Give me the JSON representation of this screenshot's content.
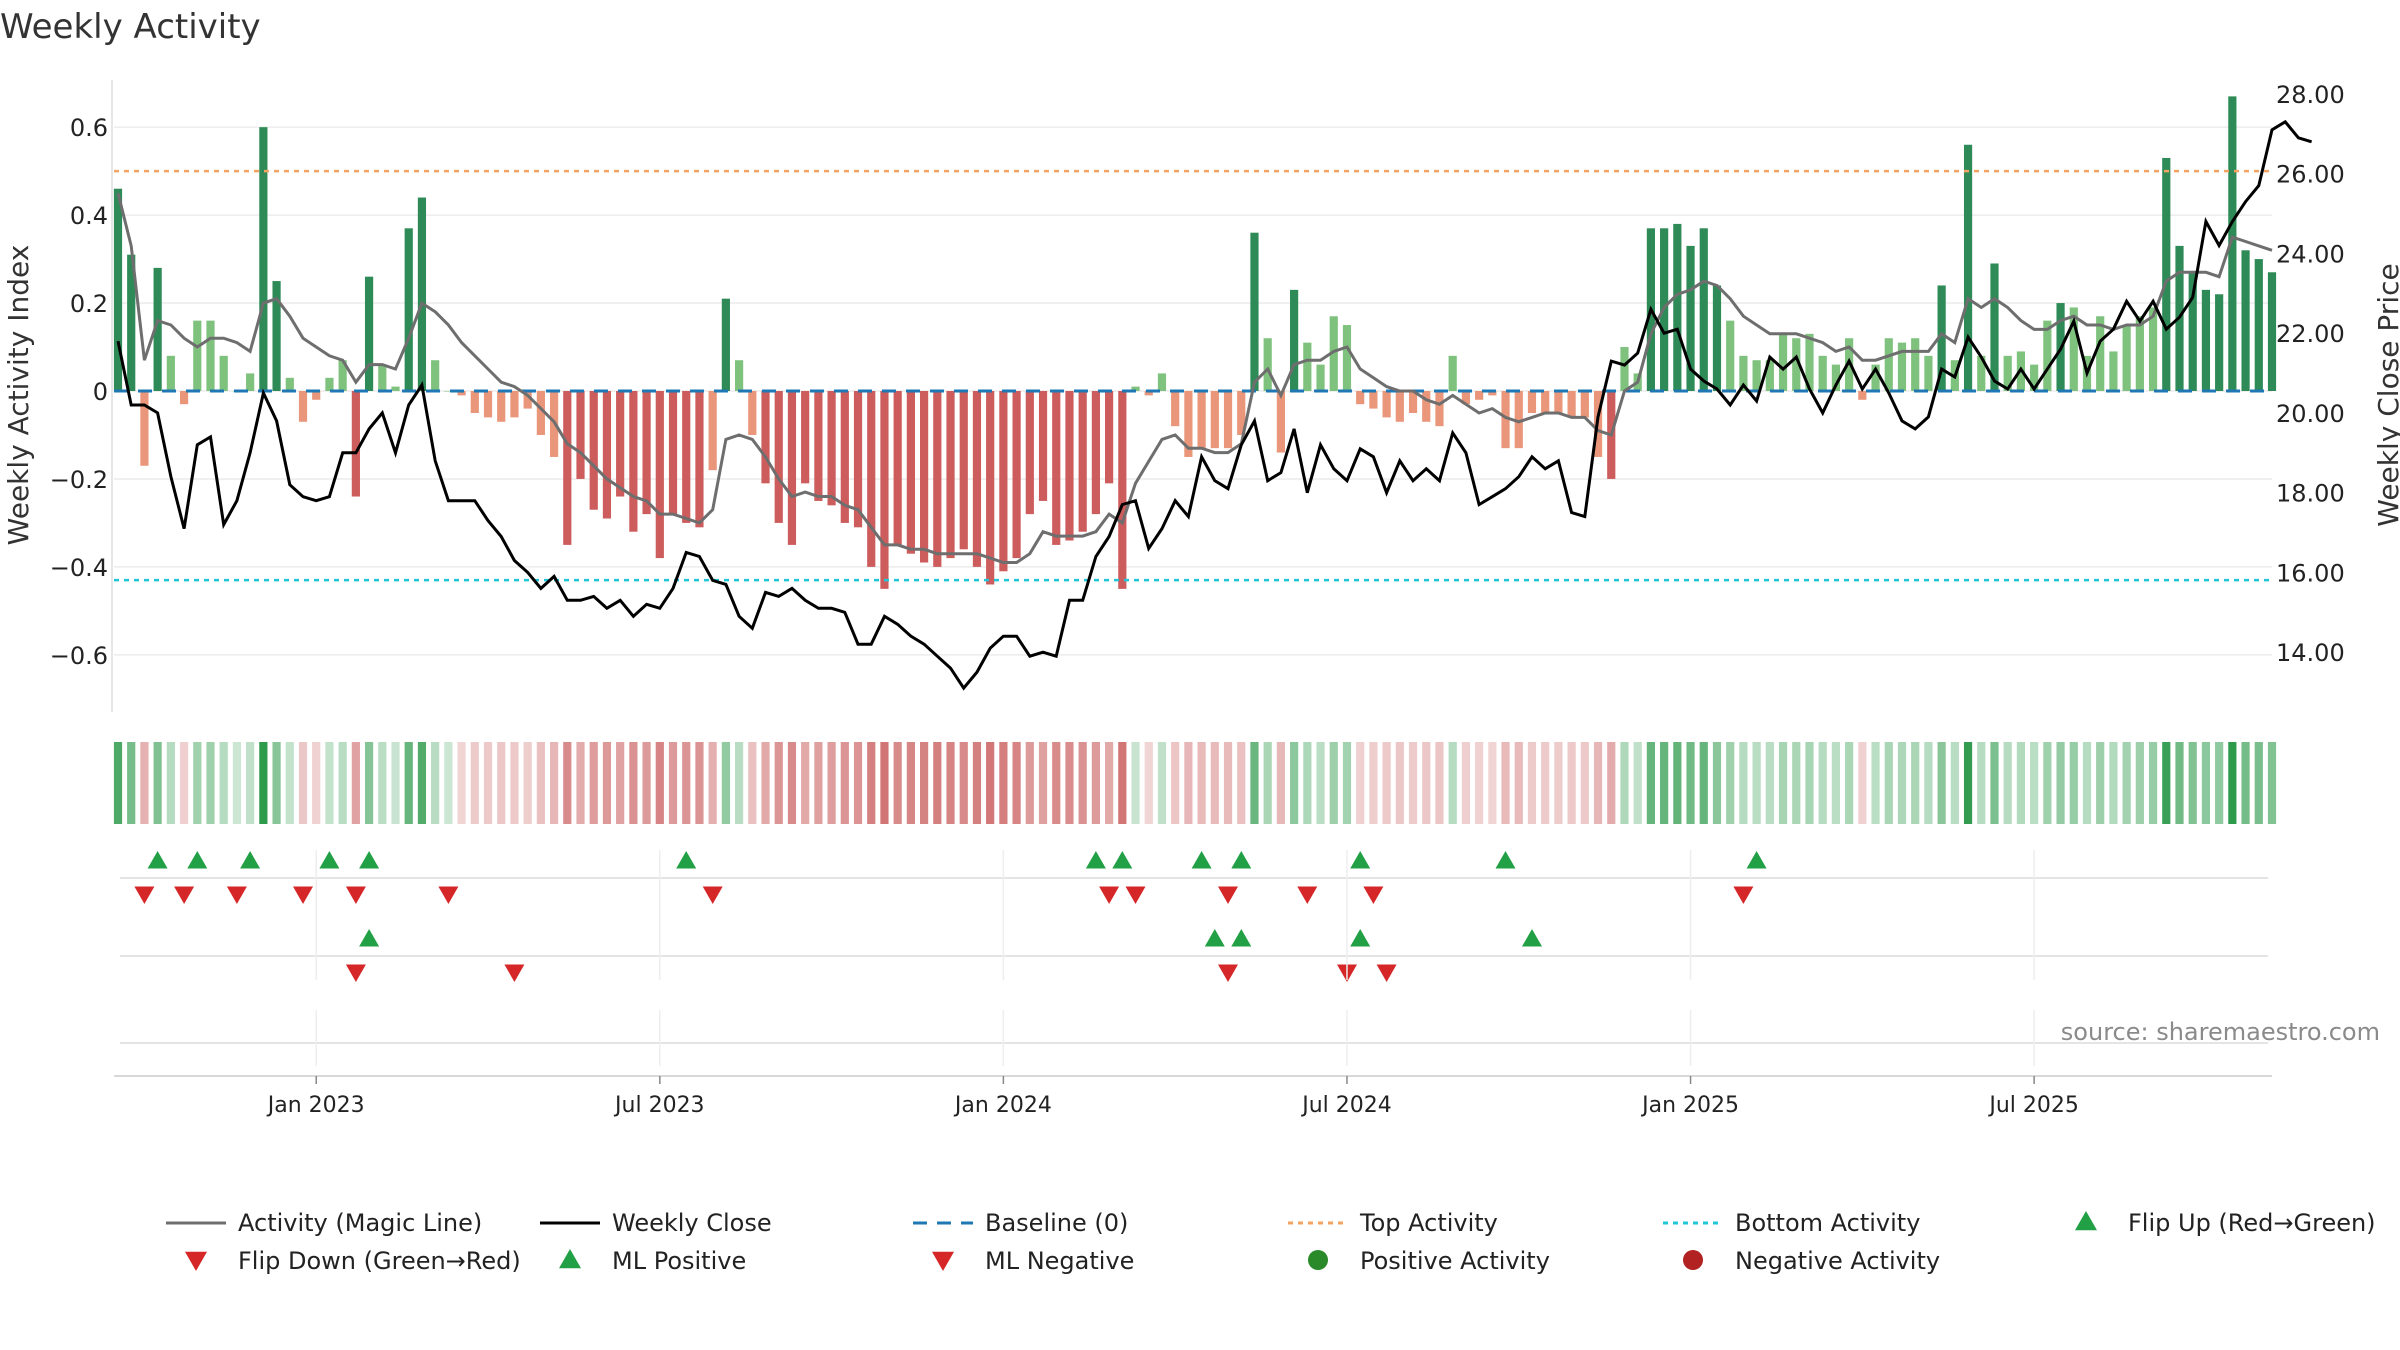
{
  "chart_data": {
    "type": "bar",
    "title": "Weekly Activity",
    "ylabel": "Weekly Activity Index",
    "y2label": "Weekly Close Price",
    "source": "source: sharemaestro.com",
    "ylim": [
      -0.73,
      0.73
    ],
    "y2lim": [
      12.5,
      28.6
    ],
    "yticks": [
      "0.6",
      "0.4",
      "0.2",
      "0",
      "−0.2",
      "−0.4",
      "−0.6"
    ],
    "ytick_values": [
      0.6,
      0.4,
      0.2,
      0,
      -0.2,
      -0.4,
      -0.6
    ],
    "y2ticks": [
      "28.00",
      "26.00",
      "24.00",
      "22.00",
      "20.00",
      "18.00",
      "16.00",
      "14.00"
    ],
    "y2tick_values": [
      28,
      26,
      24,
      22,
      20,
      18,
      16,
      14
    ],
    "xticks": [
      {
        "label": "Jan 2023",
        "week": 15
      },
      {
        "label": "Jul 2023",
        "week": 41
      },
      {
        "label": "Jan 2024",
        "week": 67
      },
      {
        "label": "Jul 2024",
        "week": 93
      },
      {
        "label": "Jan 2025",
        "week": 119
      },
      {
        "label": "Jul 2025",
        "week": 145
      }
    ],
    "top_activity": 0.5,
    "bottom_activity": -0.43,
    "activity_values": [
      0.46,
      0.31,
      -0.17,
      0.28,
      0.08,
      -0.03,
      0.16,
      0.16,
      0.08,
      0.0,
      0.04,
      0.6,
      0.25,
      0.03,
      -0.07,
      -0.02,
      0.03,
      0.07,
      -0.24,
      0.26,
      0.06,
      0.01,
      0.37,
      0.44,
      0.07,
      0.0,
      -0.01,
      -0.05,
      -0.06,
      -0.07,
      -0.06,
      -0.04,
      -0.1,
      -0.15,
      -0.35,
      -0.2,
      -0.27,
      -0.29,
      -0.24,
      -0.32,
      -0.28,
      -0.38,
      -0.28,
      -0.3,
      -0.31,
      -0.18,
      0.21,
      0.07,
      -0.1,
      -0.21,
      -0.3,
      -0.35,
      -0.21,
      -0.25,
      -0.26,
      -0.3,
      -0.31,
      -0.4,
      -0.45,
      -0.35,
      -0.37,
      -0.39,
      -0.4,
      -0.38,
      -0.36,
      -0.4,
      -0.44,
      -0.41,
      -0.38,
      -0.28,
      -0.25,
      -0.35,
      -0.34,
      -0.32,
      -0.28,
      -0.21,
      -0.45,
      0.01,
      -0.01,
      0.04,
      -0.08,
      -0.15,
      -0.13,
      -0.13,
      -0.13,
      -0.1,
      0.36,
      0.12,
      -0.14,
      0.23,
      0.11,
      0.06,
      0.17,
      0.15,
      -0.03,
      -0.04,
      -0.06,
      -0.07,
      -0.05,
      -0.07,
      -0.08,
      0.08,
      -0.03,
      -0.02,
      -0.01,
      -0.13,
      -0.13,
      -0.05,
      -0.05,
      -0.05,
      -0.06,
      -0.06,
      -0.15,
      -0.2,
      0.1,
      0.04,
      0.37,
      0.37,
      0.38,
      0.33,
      0.37,
      0.24,
      0.16,
      0.08,
      0.07,
      0.07,
      0.13,
      0.12,
      0.13,
      0.08,
      0.06,
      0.12,
      -0.02,
      0.06,
      0.12,
      0.11,
      0.12,
      0.08,
      0.24,
      0.07,
      0.56,
      0.08,
      0.29,
      0.08,
      0.09,
      0.06,
      0.16,
      0.2,
      0.19,
      0.08,
      0.17,
      0.09,
      0.15,
      0.17,
      0.19,
      0.53,
      0.33,
      0.27,
      0.23,
      0.22,
      0.67,
      0.32,
      0.3,
      0.27
    ],
    "weekly_close": [
      21.8,
      20.2,
      20.2,
      20.0,
      18.4,
      17.1,
      19.2,
      19.4,
      17.2,
      17.8,
      19.0,
      20.5,
      19.8,
      18.2,
      17.9,
      17.8,
      17.9,
      19.0,
      19.0,
      19.6,
      20.0,
      19.0,
      20.2,
      20.7,
      18.8,
      17.8,
      17.8,
      17.8,
      17.3,
      16.9,
      16.3,
      16.0,
      15.6,
      15.9,
      15.3,
      15.3,
      15.4,
      15.1,
      15.3,
      14.9,
      15.2,
      15.1,
      15.6,
      16.5,
      16.4,
      15.8,
      15.7,
      14.9,
      14.6,
      15.5,
      15.4,
      15.6,
      15.3,
      15.1,
      15.1,
      15.0,
      14.2,
      14.2,
      14.9,
      14.7,
      14.4,
      14.2,
      13.9,
      13.6,
      13.1,
      13.5,
      14.1,
      14.4,
      14.4,
      13.9,
      14.0,
      13.9,
      15.3,
      15.3,
      16.4,
      16.9,
      17.7,
      17.8,
      16.6,
      17.1,
      17.8,
      17.4,
      18.9,
      18.3,
      18.1,
      19.2,
      19.8,
      18.3,
      18.5,
      19.6,
      18.0,
      19.2,
      18.6,
      18.3,
      19.1,
      18.9,
      18.0,
      18.8,
      18.3,
      18.6,
      18.3,
      19.5,
      19.0,
      17.7,
      17.9,
      18.1,
      18.4,
      18.9,
      18.6,
      18.8,
      17.5,
      17.4,
      19.9,
      21.3,
      21.2,
      21.5,
      22.6,
      22.0,
      22.1,
      21.1,
      20.8,
      20.6,
      20.2,
      20.7,
      20.3,
      21.4,
      21.1,
      21.4,
      20.6,
      20.0,
      20.7,
      21.3,
      20.6,
      21.1,
      20.5,
      19.8,
      19.6,
      19.9,
      21.1,
      20.9,
      21.9,
      21.4,
      20.8,
      20.6,
      21.1,
      20.6,
      21.1,
      21.6,
      22.3,
      21.0,
      21.8,
      22.1,
      22.8,
      22.3,
      22.8,
      22.1,
      22.4,
      22.9,
      24.8,
      24.2,
      24.8,
      25.3,
      25.7,
      27.1,
      27.3,
      26.9,
      26.8
    ],
    "magic_line": [
      0.45,
      0.33,
      0.07,
      0.16,
      0.15,
      0.12,
      0.1,
      0.12,
      0.12,
      0.11,
      0.09,
      0.2,
      0.21,
      0.17,
      0.12,
      0.1,
      0.08,
      0.07,
      0.02,
      0.06,
      0.06,
      0.05,
      0.12,
      0.2,
      0.18,
      0.15,
      0.11,
      0.08,
      0.05,
      0.02,
      0.01,
      -0.01,
      -0.04,
      -0.07,
      -0.12,
      -0.14,
      -0.17,
      -0.2,
      -0.22,
      -0.24,
      -0.25,
      -0.28,
      -0.28,
      -0.29,
      -0.3,
      -0.27,
      -0.11,
      -0.1,
      -0.11,
      -0.15,
      -0.2,
      -0.24,
      -0.23,
      -0.24,
      -0.24,
      -0.26,
      -0.27,
      -0.31,
      -0.35,
      -0.35,
      -0.36,
      -0.36,
      -0.37,
      -0.37,
      -0.37,
      -0.37,
      -0.38,
      -0.39,
      -0.39,
      -0.37,
      -0.32,
      -0.33,
      -0.33,
      -0.33,
      -0.32,
      -0.28,
      -0.3,
      -0.21,
      -0.16,
      -0.11,
      -0.1,
      -0.13,
      -0.13,
      -0.14,
      -0.14,
      -0.12,
      0.02,
      0.05,
      -0.01,
      0.06,
      0.07,
      0.07,
      0.09,
      0.1,
      0.05,
      0.03,
      0.01,
      0.0,
      0.0,
      -0.02,
      -0.03,
      -0.01,
      -0.03,
      -0.05,
      -0.04,
      -0.06,
      -0.07,
      -0.06,
      -0.05,
      -0.05,
      -0.06,
      -0.06,
      -0.09,
      -0.1,
      0.0,
      0.02,
      0.13,
      0.19,
      0.22,
      0.23,
      0.25,
      0.24,
      0.21,
      0.17,
      0.15,
      0.13,
      0.13,
      0.13,
      0.12,
      0.11,
      0.09,
      0.1,
      0.07,
      0.07,
      0.08,
      0.09,
      0.09,
      0.09,
      0.13,
      0.11,
      0.21,
      0.19,
      0.21,
      0.19,
      0.16,
      0.14,
      0.14,
      0.16,
      0.17,
      0.15,
      0.15,
      0.14,
      0.15,
      0.15,
      0.17,
      0.25,
      0.27,
      0.27,
      0.27,
      0.26,
      0.35,
      0.34,
      0.33,
      0.32
    ],
    "flip_up": [
      3,
      6,
      10,
      16,
      19,
      43,
      74,
      76,
      82,
      85,
      94,
      105,
      124
    ],
    "flip_down": [
      2,
      5,
      9,
      14,
      18,
      25,
      45,
      75,
      77,
      84,
      90,
      95,
      123
    ],
    "ml_positive": [
      19,
      83,
      85,
      94,
      107
    ],
    "ml_negative": [
      18,
      30,
      84,
      93,
      96
    ],
    "legend": [
      "Activity (Magic Line)",
      "Weekly Close",
      "Baseline (0)",
      "Top Activity",
      "Bottom Activity",
      "Flip Up (Red→Green)",
      "Flip Down (Green→Red)",
      "ML Positive",
      "ML Negative",
      "Positive Activity",
      "Negative Activity"
    ]
  },
  "colors": {
    "pos_strong": "#2e8b57",
    "pos_weak": "#7fc27e",
    "neg_strong": "#cd5c5c",
    "neg_weak": "#e9967a",
    "magic_line": "#6e6e6e",
    "close_line": "#000000",
    "baseline": "#1f77b4",
    "top_line": "#f4a460",
    "bottom_line": "#20c5d8",
    "flip_up": "#22a045",
    "flip_down": "#d62728",
    "pos_dot": "#2a8a2a",
    "neg_dot": "#b22222"
  }
}
